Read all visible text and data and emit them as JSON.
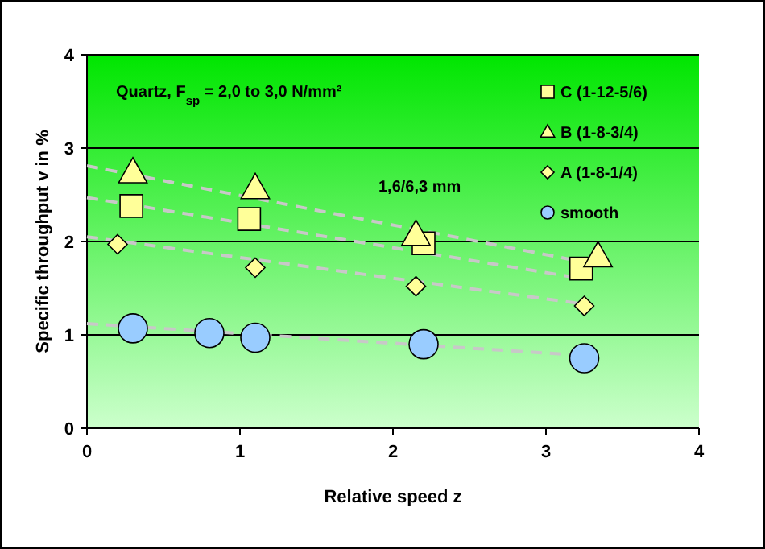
{
  "chart_data": {
    "type": "scatter",
    "xlabel": "Relative speed z",
    "ylabel": "Specific throughput v in %",
    "xlim": [
      0,
      4
    ],
    "ylim": [
      0,
      4
    ],
    "xticks": [
      0,
      1,
      2,
      3,
      4
    ],
    "yticks": [
      0,
      1,
      2,
      3,
      4
    ],
    "grid": "y",
    "legend": "top right",
    "annotations": [
      {
        "text": "Quartz, F$_{sp}$ = 2,0 to 3,0 N/mm²"
      },
      {
        "text": "1,6/6,3 mm"
      }
    ],
    "series": [
      {
        "name": "C (1-12-5/6)",
        "color": "#ffff99",
        "marker": "square",
        "x": [
          0.29,
          1.06,
          2.2,
          3.23
        ],
        "values": [
          2.38,
          2.24,
          1.98,
          1.71
        ]
      },
      {
        "name": "B (1-8-3/4)",
        "color": "#ffff99",
        "marker": "triangle",
        "x": [
          0.3,
          1.1,
          2.15,
          3.34
        ],
        "values": [
          2.74,
          2.57,
          2.07,
          1.84
        ]
      },
      {
        "name": "A (1-8-1/4)",
        "color": "#ffff99",
        "marker": "diamond",
        "x": [
          0.2,
          1.1,
          2.15,
          3.25
        ],
        "values": [
          1.97,
          1.72,
          1.52,
          1.31
        ]
      },
      {
        "name": "smooth",
        "color": "#99ccff",
        "marker": "circle",
        "x": [
          0.3,
          0.8,
          1.1,
          2.2,
          3.25
        ],
        "values": [
          1.07,
          1.02,
          0.97,
          0.9,
          0.75
        ]
      },
      {
        "type": "line",
        "color": "#c8c8c8",
        "line_style": "dashed",
        "marker": "none",
        "x": [
          0,
          3.25
        ],
        "values": [
          2.81,
          1.78
        ]
      },
      {
        "type": "line",
        "color": "#c8c8c8",
        "line_style": "dashed",
        "marker": "none",
        "x": [
          0,
          3.25
        ],
        "values": [
          2.47,
          1.6
        ]
      },
      {
        "type": "line",
        "color": "#c8c8c8",
        "line_style": "dashed",
        "marker": "none",
        "x": [
          0,
          3.25
        ],
        "values": [
          2.05,
          1.33
        ]
      },
      {
        "type": "line",
        "color": "#c8c8c8",
        "line_style": "dashed",
        "marker": "none",
        "x": [
          0,
          3.25
        ],
        "values": [
          1.12,
          0.78
        ]
      }
    ]
  }
}
